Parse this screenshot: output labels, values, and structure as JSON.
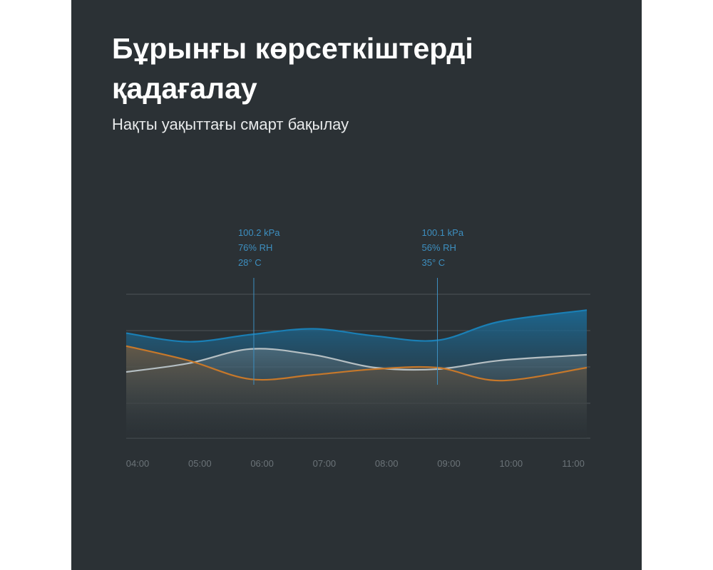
{
  "header": {
    "title": "Бұрынғы көрсеткіштерді қадағалау",
    "subtitle": "Нақты уақыттағы смарт бақылау"
  },
  "colors": {
    "background": "#2b3135",
    "pressure": "#1a7fb5",
    "humidity": "#b5bfc3",
    "temperature": "#c7782a",
    "annotation": "#3d8fc0",
    "tick": "#6b7378",
    "grid": "#4c5458"
  },
  "chart_data": {
    "type": "area",
    "title": "",
    "xlabel": "",
    "ylabel": "",
    "categories": [
      "04:00",
      "05:00",
      "06:00",
      "07:00",
      "08:00",
      "09:00",
      "10:00",
      "11:00"
    ],
    "grid": true,
    "ylim": [
      0,
      100
    ],
    "series": [
      {
        "key": "pressure",
        "color": "#1a7fb5",
        "x": [
          0,
          1,
          2,
          3,
          4,
          5,
          6,
          7.4
        ],
        "y": [
          73,
          67,
          72,
          76,
          71,
          68,
          81,
          89
        ]
      },
      {
        "key": "humidity",
        "color": "#b5bfc3",
        "x": [
          0,
          1,
          2,
          3,
          4,
          5,
          6,
          7.4
        ],
        "y": [
          46,
          52,
          62,
          58,
          49,
          48,
          54,
          58
        ]
      },
      {
        "key": "temperature",
        "color": "#c7782a",
        "x": [
          0,
          1,
          2,
          3,
          4,
          5,
          6,
          7.4
        ],
        "y": [
          64,
          54,
          41,
          44,
          48,
          49,
          40,
          49
        ]
      }
    ],
    "annotations": [
      {
        "x": 2.05,
        "lines": [
          "100.2 kPa",
          "76% RH",
          "28° C"
        ]
      },
      {
        "x": 5.0,
        "lines": [
          "100.1 kPa",
          "56% RH",
          "35° C"
        ]
      }
    ]
  }
}
